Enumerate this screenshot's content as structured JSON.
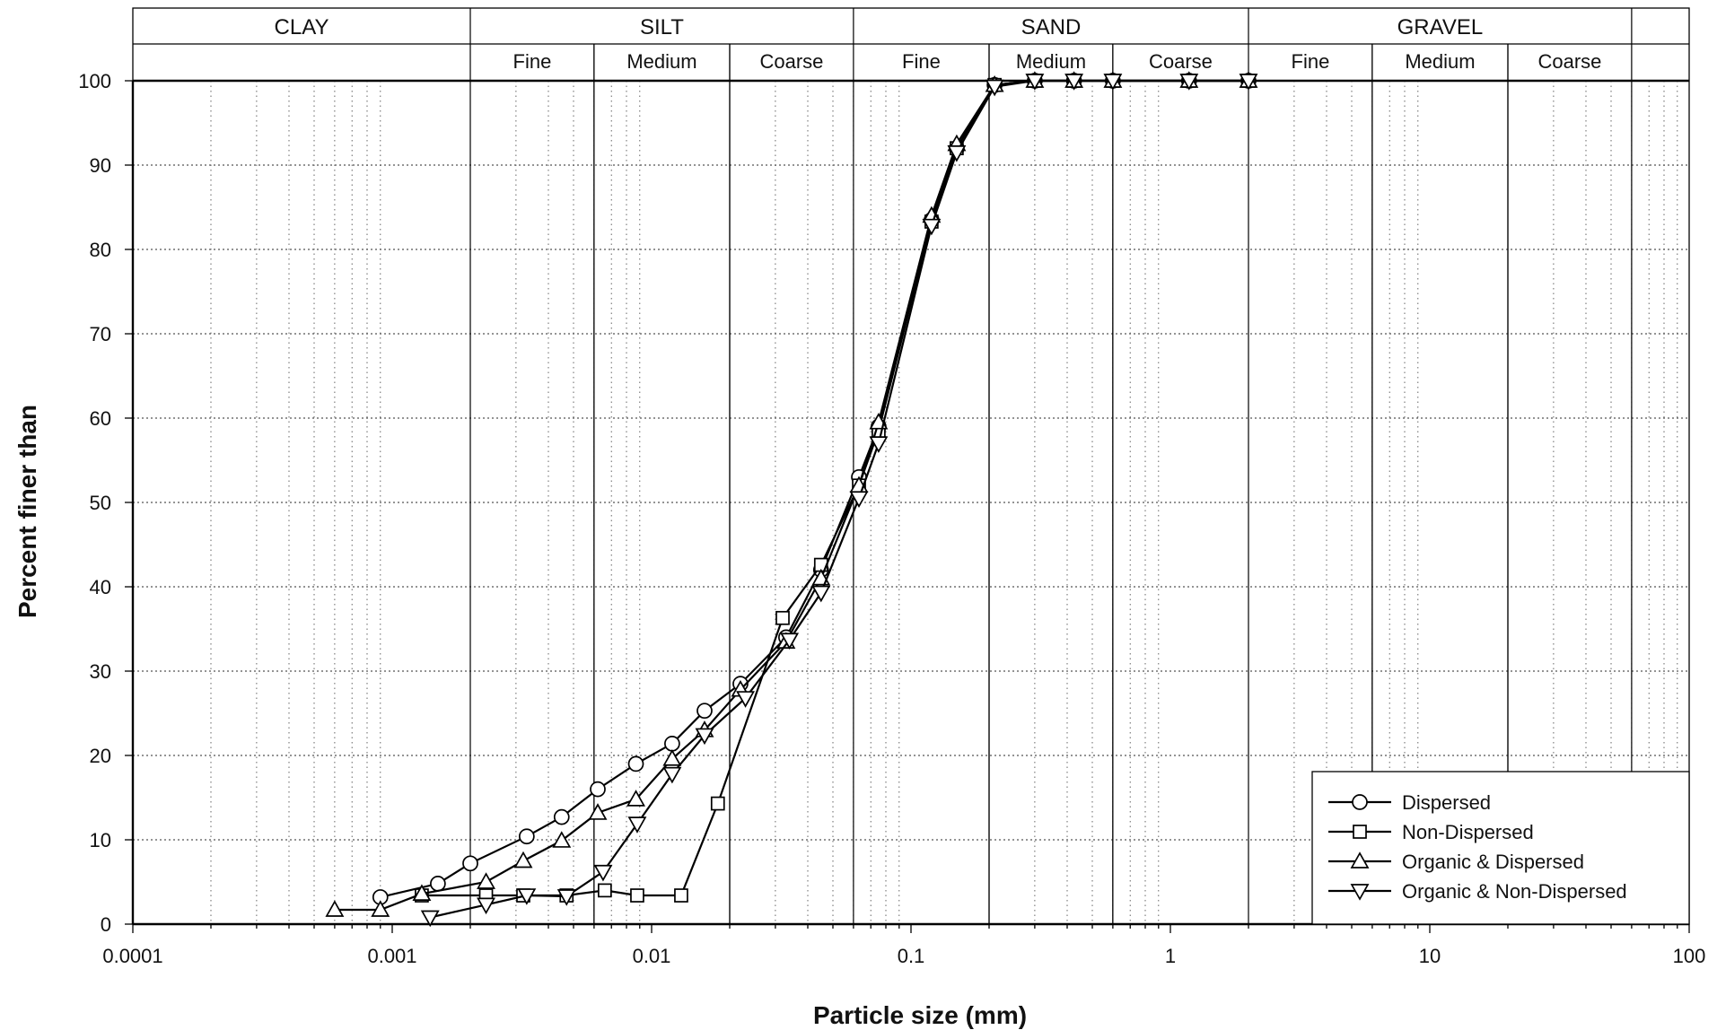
{
  "chart_data": {
    "type": "line",
    "x_scale": "log",
    "xlim": [
      0.0001,
      100
    ],
    "ylim": [
      0,
      100
    ],
    "xlabel": "Particle size (mm)",
    "ylabel": "Percent finer than",
    "x_ticks": [
      0.0001,
      0.001,
      0.01,
      0.1,
      1,
      10,
      100
    ],
    "x_tick_labels": [
      "0.0001",
      "0.001",
      "0.01",
      "0.1",
      "1",
      "10",
      "100"
    ],
    "y_ticks": [
      0,
      10,
      20,
      30,
      40,
      50,
      60,
      70,
      80,
      90,
      100
    ],
    "y_tick_labels": [
      "0",
      "10",
      "20",
      "30",
      "40",
      "50",
      "60",
      "70",
      "80",
      "90",
      "100"
    ],
    "grid": "dotted",
    "legend_position": "bottom-right",
    "soil_classes": [
      {
        "label": "CLAY",
        "from": 0.0001,
        "to": 0.002
      },
      {
        "label": "SILT",
        "from": 0.002,
        "to": 0.06
      },
      {
        "label": "SAND",
        "from": 0.06,
        "to": 2
      },
      {
        "label": "GRAVEL",
        "from": 2,
        "to": 60
      }
    ],
    "sub_classes": [
      {
        "label": "Fine",
        "from": 0.002,
        "to": 0.006
      },
      {
        "label": "Medium",
        "from": 0.006,
        "to": 0.02
      },
      {
        "label": "Coarse",
        "from": 0.02,
        "to": 0.06
      },
      {
        "label": "Fine",
        "from": 0.06,
        "to": 0.2
      },
      {
        "label": "Medium",
        "from": 0.2,
        "to": 0.6
      },
      {
        "label": "Coarse",
        "from": 0.6,
        "to": 2
      },
      {
        "label": "Fine",
        "from": 2,
        "to": 6
      },
      {
        "label": "Medium",
        "from": 6,
        "to": 20
      },
      {
        "label": "Coarse",
        "from": 20,
        "to": 60
      }
    ],
    "series": [
      {
        "name": "Dispersed",
        "marker": "circle",
        "x": [
          0.0009,
          0.0015,
          0.002,
          0.0033,
          0.0045,
          0.0062,
          0.0087,
          0.012,
          0.016,
          0.022,
          0.033,
          0.045,
          0.063,
          0.075,
          0.12,
          0.15,
          0.21,
          0.3,
          0.425,
          0.6,
          1.18,
          2
        ],
        "y": [
          3.2,
          4.8,
          7.2,
          10.4,
          12.7,
          16.0,
          19.0,
          21.4,
          25.3,
          28.5,
          34.0,
          42.0,
          53.0,
          59.0,
          83.5,
          92.0,
          99.5,
          100,
          100,
          100,
          100,
          100
        ]
      },
      {
        "name": "Non-Dispersed",
        "marker": "square",
        "x": [
          0.0013,
          0.0023,
          0.0032,
          0.0047,
          0.0066,
          0.0088,
          0.013,
          0.018,
          0.032,
          0.045,
          0.063,
          0.075,
          0.12,
          0.15,
          0.21,
          0.3,
          0.425,
          0.6,
          1.18,
          2
        ],
        "y": [
          3.4,
          3.4,
          3.4,
          3.4,
          4.0,
          3.4,
          3.4,
          14.3,
          36.3,
          42.6,
          52.0,
          58.5,
          83.3,
          92.0,
          99.5,
          100,
          100,
          100,
          100,
          100
        ]
      },
      {
        "name": "Organic & Dispersed",
        "marker": "triangle-up",
        "x": [
          0.0006,
          0.0009,
          0.0013,
          0.0023,
          0.0032,
          0.0045,
          0.0062,
          0.0087,
          0.012,
          0.016,
          0.022,
          0.033,
          0.045,
          0.063,
          0.075,
          0.12,
          0.15,
          0.21,
          0.3,
          0.425,
          0.6,
          1.18,
          2
        ],
        "y": [
          1.7,
          1.7,
          3.6,
          5.0,
          7.5,
          9.9,
          13.2,
          14.8,
          19.6,
          23.0,
          27.8,
          33.5,
          41.0,
          52.0,
          59.5,
          84.0,
          92.5,
          99.5,
          100,
          100,
          100,
          100,
          100
        ]
      },
      {
        "name": "Organic & Non-Dispersed",
        "marker": "triangle-down",
        "x": [
          0.0014,
          0.0023,
          0.0033,
          0.0047,
          0.0065,
          0.0088,
          0.012,
          0.016,
          0.023,
          0.034,
          0.045,
          0.063,
          0.075,
          0.12,
          0.15,
          0.21,
          0.3,
          0.425,
          0.6,
          1.18,
          2
        ],
        "y": [
          0.8,
          2.3,
          3.4,
          3.3,
          6.2,
          11.9,
          17.8,
          22.4,
          26.8,
          33.7,
          39.3,
          50.5,
          57.0,
          82.8,
          91.5,
          99.3,
          100,
          100,
          100,
          100,
          100
        ]
      }
    ]
  }
}
